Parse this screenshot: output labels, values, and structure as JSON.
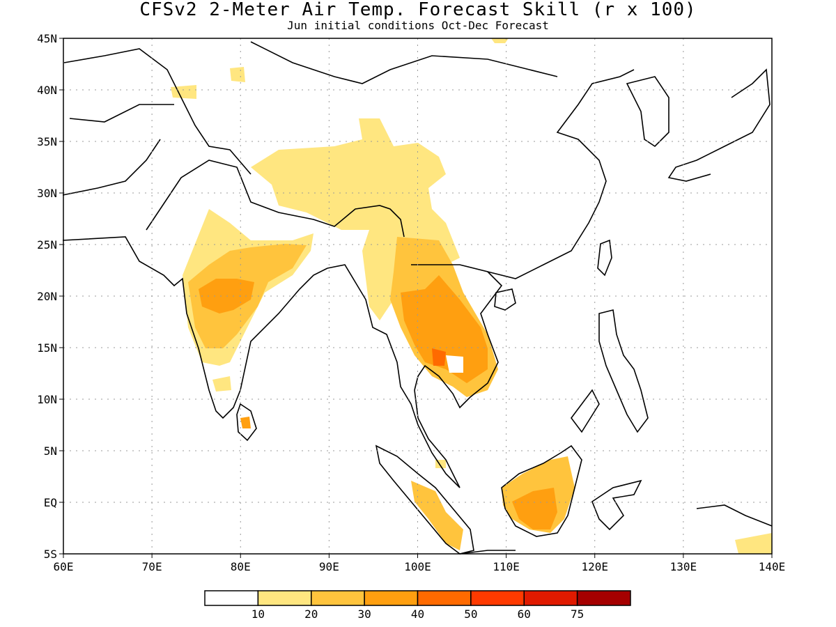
{
  "title": "CFSv2 2-Meter Air Temp. Forecast Skill (r x 100)",
  "subtitle": "Jun initial conditions  Oct-Dec Forecast",
  "lat_labels": [
    "45N",
    "40N",
    "35N",
    "30N",
    "25N",
    "20N",
    "15N",
    "10N",
    "5N",
    "EQ",
    "5S"
  ],
  "lon_labels": [
    "60E",
    "70E",
    "80E",
    "90E",
    "100E",
    "110E",
    "120E",
    "130E",
    "140E"
  ],
  "colorbar": {
    "colors": [
      "#ffffff",
      "#ffe680",
      "#ffc43d",
      "#ff9f10",
      "#ff6a00",
      "#ff3a00",
      "#e01a00",
      "#a50000"
    ],
    "labels": [
      "10",
      "20",
      "30",
      "40",
      "50",
      "60",
      "75"
    ]
  },
  "colors": {
    "land_outline": "#000000",
    "grid": "#999999"
  }
}
